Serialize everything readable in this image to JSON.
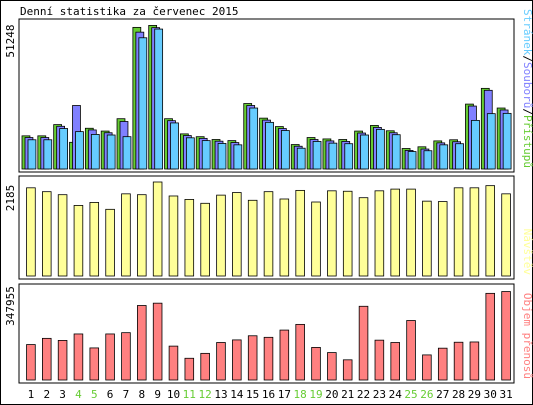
{
  "chart_data": [
    {
      "type": "bar",
      "title": "Denní statistika za červenec 2015",
      "ylabel_max": "51248",
      "ymax": 51248,
      "categories": [
        "1",
        "2",
        "3",
        "4",
        "5",
        "6",
        "7",
        "8",
        "9",
        "10",
        "11",
        "12",
        "13",
        "14",
        "15",
        "16",
        "17",
        "18",
        "19",
        "20",
        "21",
        "22",
        "23",
        "24",
        "25",
        "26",
        "27",
        "28",
        "29",
        "30",
        "31"
      ],
      "weekend_days": [
        "4",
        "5",
        "11",
        "12",
        "18",
        "19",
        "25",
        "26"
      ],
      "legend": [
        {
          "label": "Stránek",
          "color": "#66ccff"
        },
        {
          "label": "/",
          "color": "#000000"
        },
        {
          "label": "Souborů",
          "color": "#8080ff"
        },
        {
          "label": "/",
          "color": "#000000"
        },
        {
          "label": "Přístupů",
          "color": "#66cc33"
        }
      ],
      "series": [
        {
          "name": "Přístupů",
          "color": "#66cc33",
          "values": [
            11800,
            11800,
            15800,
            9500,
            14500,
            13500,
            17900,
            50400,
            51100,
            17900,
            12500,
            11500,
            10500,
            10100,
            23300,
            18100,
            15100,
            8700,
            11200,
            10700,
            10500,
            13500,
            15500,
            13600,
            7300,
            7900,
            10000,
            10400,
            23100,
            28700,
            21700
          ]
        },
        {
          "name": "Souborů",
          "color": "#8080ff",
          "values": [
            11200,
            11200,
            15200,
            22600,
            13900,
            12900,
            16900,
            48700,
            50300,
            17200,
            11900,
            10900,
            9900,
            9400,
            22600,
            17400,
            14400,
            8100,
            10500,
            10000,
            9800,
            12800,
            14800,
            12900,
            6600,
            7100,
            9300,
            9700,
            22400,
            28000,
            21000
          ]
        },
        {
          "name": "Stránek",
          "color": "#66ccff",
          "values": [
            10400,
            10400,
            14400,
            13300,
            12300,
            12100,
            11500,
            46700,
            49800,
            16400,
            11100,
            10100,
            9100,
            8600,
            21700,
            16600,
            13700,
            7400,
            9800,
            9200,
            9000,
            12100,
            14100,
            12200,
            6200,
            6500,
            8600,
            9000,
            17300,
            19700,
            19800
          ]
        }
      ]
    },
    {
      "type": "bar",
      "ylabel_max": "2185",
      "ymax": 2185,
      "legend": [
        {
          "label": "Návštěv",
          "color": "#ffff99"
        }
      ],
      "series": [
        {
          "name": "Návštěv",
          "color": "#ffff99",
          "values": [
            2050,
            1960,
            1890,
            1640,
            1710,
            1550,
            1910,
            1890,
            2185,
            1860,
            1780,
            1690,
            1880,
            1940,
            1760,
            1960,
            1790,
            1990,
            1720,
            1980,
            1970,
            1820,
            1980,
            2020,
            2020,
            1740,
            1730,
            2050,
            2050,
            2100,
            1910
          ]
        }
      ]
    },
    {
      "type": "bar",
      "ylabel_max": "347955",
      "ymax": 347955,
      "legend": [
        {
          "label": "Objem přenosů",
          "color": "#ff8080"
        }
      ],
      "series": [
        {
          "name": "Objem přenosů",
          "color": "#ff8080",
          "values": [
            137000,
            161000,
            153000,
            178000,
            124000,
            178000,
            183000,
            288000,
            297000,
            131000,
            84000,
            103000,
            145000,
            155000,
            171000,
            165000,
            193000,
            215000,
            126000,
            106000,
            78000,
            285000,
            154000,
            145000,
            230000,
            97000,
            123000,
            146000,
            147000,
            335000,
            342000
          ]
        }
      ]
    }
  ]
}
